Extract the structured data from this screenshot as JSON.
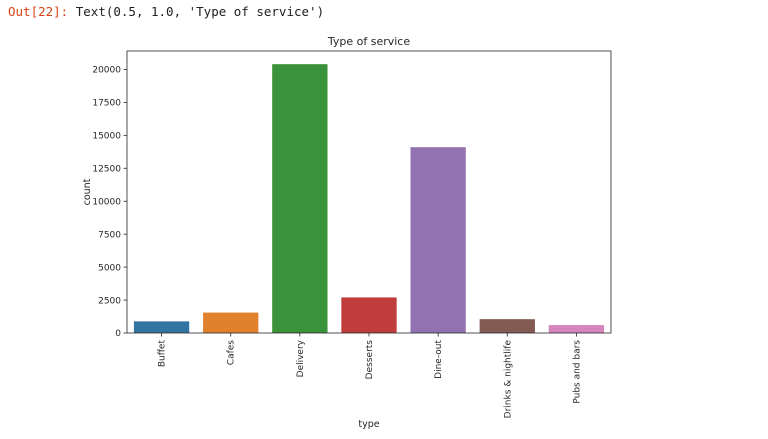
{
  "cell": {
    "prompt": "Out[22]:",
    "output": " Text(0.5, 1.0, 'Type of service')"
  },
  "chart_data": {
    "type": "bar",
    "title": "Type of service",
    "xlabel": "type",
    "ylabel": "count",
    "categories": [
      "Buffet",
      "Cafes",
      "Delivery",
      "Desserts",
      "Dine-out",
      "Drinks & nightlife",
      "Pubs and bars"
    ],
    "values": [
      882,
      1550,
      20400,
      2700,
      14100,
      1050,
      600
    ],
    "colors": [
      "#3274a1",
      "#e1812c",
      "#3a923a",
      "#c03d3e",
      "#9372b2",
      "#845b53",
      "#d684bd"
    ],
    "ylim": [
      0,
      21400
    ],
    "yticks": [
      0,
      2500,
      5000,
      7500,
      10000,
      12500,
      15000,
      17500,
      20000
    ],
    "ytick_labels": [
      "0",
      "2500",
      "5000",
      "7500",
      "10000",
      "12500",
      "15000",
      "17500",
      "20000"
    ],
    "grid": false
  }
}
